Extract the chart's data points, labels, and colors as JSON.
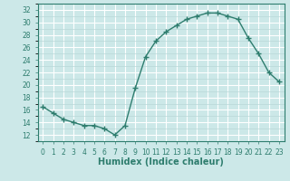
{
  "x": [
    0,
    1,
    2,
    3,
    4,
    5,
    6,
    7,
    8,
    9,
    10,
    11,
    12,
    13,
    14,
    15,
    16,
    17,
    18,
    19,
    20,
    21,
    22,
    23
  ],
  "y": [
    16.5,
    15.5,
    14.5,
    14.0,
    13.5,
    13.5,
    13.0,
    12.0,
    13.5,
    19.5,
    24.5,
    27.0,
    28.5,
    29.5,
    30.5,
    31.0,
    31.5,
    31.5,
    31.0,
    30.5,
    27.5,
    25.0,
    22.0,
    20.5
  ],
  "line_color": "#2e7d6e",
  "bg_color": "#cce8e8",
  "grid_color": "#ffffff",
  "minor_grid_color": "#b8d8d8",
  "xlabel": "Humidex (Indice chaleur)",
  "xlim": [
    -0.5,
    23.5
  ],
  "ylim": [
    11,
    33
  ],
  "yticks": [
    12,
    14,
    16,
    18,
    20,
    22,
    24,
    26,
    28,
    30,
    32
  ],
  "xticks": [
    0,
    1,
    2,
    3,
    4,
    5,
    6,
    7,
    8,
    9,
    10,
    11,
    12,
    13,
    14,
    15,
    16,
    17,
    18,
    19,
    20,
    21,
    22,
    23
  ],
  "tick_label_fontsize": 5.5,
  "xlabel_fontsize": 7.0,
  "marker_size": 4,
  "line_width": 1.0
}
